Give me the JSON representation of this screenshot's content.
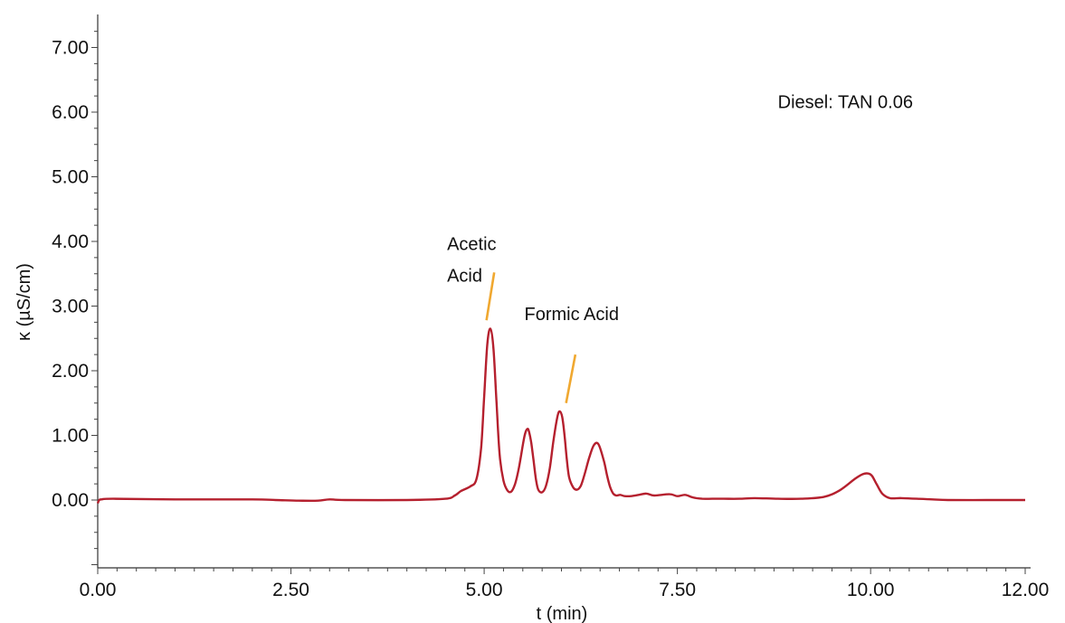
{
  "chart_data": {
    "type": "line",
    "title": "",
    "xlabel": "t (min)",
    "ylabel": "κ (µS/cm)",
    "xlim": [
      0,
      12
    ],
    "ylim": [
      -1.05,
      7.5
    ],
    "x_ticks": [
      0,
      2.5,
      5,
      7.5,
      10,
      12
    ],
    "x_tick_labels": [
      "0.00",
      "2.50",
      "5.00",
      "7.50",
      "10.00",
      "12.00"
    ],
    "y_ticks": [
      0,
      1,
      2,
      3,
      4,
      5,
      6,
      7
    ],
    "y_tick_labels": [
      "0.00",
      "1.00",
      "2.00",
      "3.00",
      "4.00",
      "5.00",
      "6.00",
      "7.00"
    ],
    "grid": false,
    "series": [
      {
        "color": "#b5202e",
        "x": [
          0.0,
          0.02,
          0.05,
          0.2,
          1.0,
          2.0,
          2.3,
          2.6,
          2.85,
          3.0,
          3.2,
          4.0,
          4.5,
          4.62,
          4.7,
          4.82,
          4.9,
          4.96,
          5.0,
          5.04,
          5.08,
          5.12,
          5.16,
          5.2,
          5.25,
          5.3,
          5.35,
          5.4,
          5.45,
          5.5,
          5.53,
          5.56,
          5.58,
          5.61,
          5.64,
          5.67,
          5.7,
          5.75,
          5.8,
          5.85,
          5.9,
          5.95,
          5.98,
          6.01,
          6.04,
          6.07,
          6.1,
          6.15,
          6.2,
          6.25,
          6.3,
          6.36,
          6.42,
          6.48,
          6.55,
          6.59,
          6.63,
          6.67,
          6.71,
          6.76,
          6.82,
          6.9,
          7.0,
          7.1,
          7.2,
          7.4,
          7.5,
          7.6,
          7.7,
          7.82,
          7.95,
          8.1,
          8.3,
          8.5,
          8.8,
          9.1,
          9.4,
          9.6,
          9.8,
          9.9,
          9.97,
          10.02,
          10.08,
          10.15,
          10.25,
          10.4,
          10.6,
          10.8,
          11.0,
          11.5,
          12.0
        ],
        "y": [
          -0.05,
          0.0,
          0.01,
          0.02,
          0.01,
          0.01,
          0.0,
          -0.01,
          -0.01,
          0.01,
          0.0,
          0.0,
          0.02,
          0.07,
          0.14,
          0.21,
          0.32,
          0.8,
          1.6,
          2.4,
          2.65,
          2.35,
          1.5,
          0.7,
          0.3,
          0.15,
          0.13,
          0.25,
          0.5,
          0.85,
          1.03,
          1.1,
          1.06,
          0.88,
          0.6,
          0.32,
          0.16,
          0.12,
          0.22,
          0.5,
          0.95,
          1.3,
          1.37,
          1.28,
          1.0,
          0.62,
          0.35,
          0.2,
          0.16,
          0.22,
          0.4,
          0.66,
          0.85,
          0.86,
          0.6,
          0.38,
          0.2,
          0.1,
          0.07,
          0.08,
          0.06,
          0.06,
          0.08,
          0.1,
          0.07,
          0.09,
          0.06,
          0.08,
          0.04,
          0.02,
          0.02,
          0.02,
          0.02,
          0.03,
          0.02,
          0.02,
          0.05,
          0.15,
          0.33,
          0.4,
          0.41,
          0.37,
          0.24,
          0.1,
          0.03,
          0.03,
          0.02,
          0.01,
          0.0,
          0.0,
          0.0
        ]
      }
    ],
    "annotations": [
      {
        "text": "Diesel: TAN 0.06",
        "x": 8.8,
        "y": 6.06
      },
      {
        "text": "Acetic",
        "x": 4.52,
        "y": 3.87
      },
      {
        "text": "Acid",
        "x": 4.52,
        "y": 3.38
      },
      {
        "text": "Formic Acid",
        "x": 5.52,
        "y": 2.78
      }
    ],
    "leader_color": "#f0a830",
    "leaders": [
      {
        "from": [
          5.03,
          2.78
        ],
        "to": [
          5.13,
          3.52
        ]
      },
      {
        "from": [
          6.06,
          1.5
        ],
        "to": [
          6.18,
          2.25
        ]
      }
    ]
  }
}
